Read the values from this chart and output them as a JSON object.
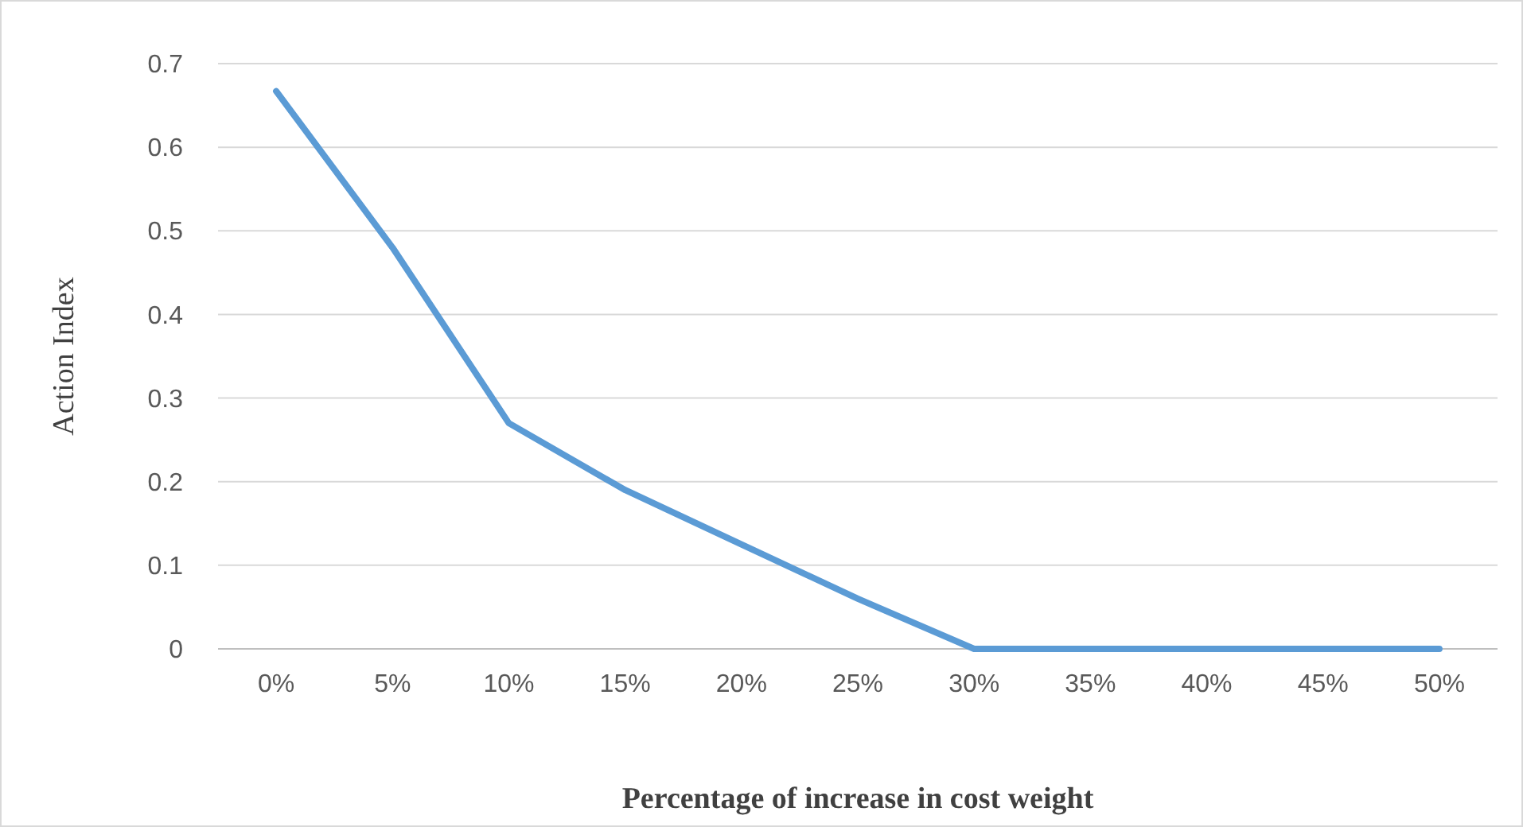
{
  "chart_data": {
    "type": "line",
    "xlabel": "Percentage of increase in cost weight",
    "ylabel": "Action Index",
    "categories": [
      "0%",
      "5%",
      "10%",
      "15%",
      "20%",
      "25%",
      "30%",
      "35%",
      "40%",
      "45%",
      "50%"
    ],
    "series": [
      {
        "color": "#5b9bd5",
        "values": [
          0.667,
          0.48,
          0.27,
          0.19,
          0.125,
          0.06,
          0,
          0,
          0,
          0,
          0
        ]
      }
    ],
    "ylim": [
      0,
      0.7
    ],
    "yticks": [
      0,
      0.1,
      0.2,
      0.3,
      0.4,
      0.5,
      0.6,
      0.7
    ],
    "grid": "y"
  }
}
